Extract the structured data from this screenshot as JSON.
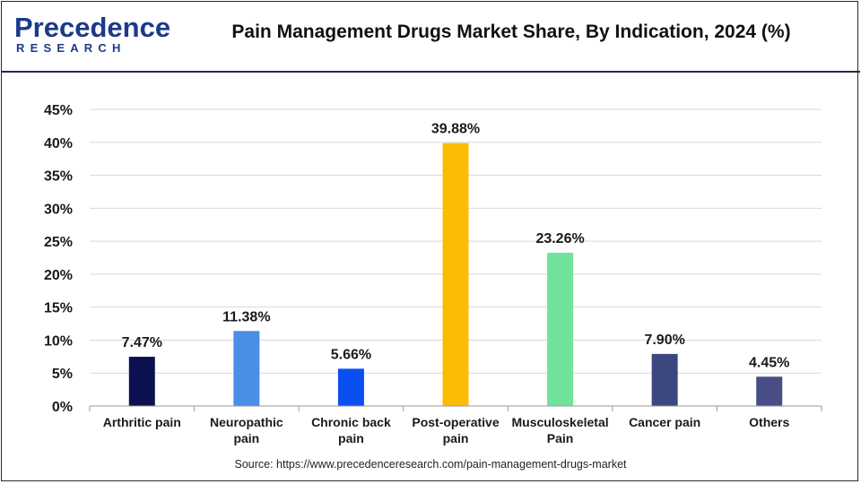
{
  "brand": {
    "name": "Precedence",
    "sub": "RESEARCH",
    "color": "#1d3a8a"
  },
  "title": "Pain Management Drugs Market Share, By Indication, 2024 (%)",
  "source": "Source: https://www.precedenceresearch.com/pain-management-drugs-market",
  "chart_data": {
    "type": "bar",
    "title": "Pain Management Drugs Market Share, By Indication, 2024 (%)",
    "xlabel": "",
    "ylabel": "",
    "ylim": [
      0,
      45
    ],
    "grid": true,
    "y_ticks": [
      "0%",
      "5%",
      "10%",
      "15%",
      "20%",
      "25%",
      "30%",
      "35%",
      "40%",
      "45%"
    ],
    "y_tick_values": [
      0,
      5,
      10,
      15,
      20,
      25,
      30,
      35,
      40,
      45
    ],
    "categories": [
      [
        "Arthritic pain"
      ],
      [
        "Neuropathic",
        "pain"
      ],
      [
        "Chronic back",
        "pain"
      ],
      [
        "Post-operative",
        "pain"
      ],
      [
        "Musculoskeletal",
        "Pain"
      ],
      [
        "Cancer pain"
      ],
      [
        "Others"
      ]
    ],
    "values": [
      7.47,
      11.38,
      5.66,
      39.88,
      23.26,
      7.9,
      4.45
    ],
    "labels": [
      "7.47%",
      "11.38%",
      "5.66%",
      "39.88%",
      "23.26%",
      "7.90%",
      "4.45%"
    ],
    "colors": [
      "#0b1150",
      "#4a8fe6",
      "#0a4ff0",
      "#fbbc05",
      "#6fe39b",
      "#3c4780",
      "#474f86"
    ]
  }
}
